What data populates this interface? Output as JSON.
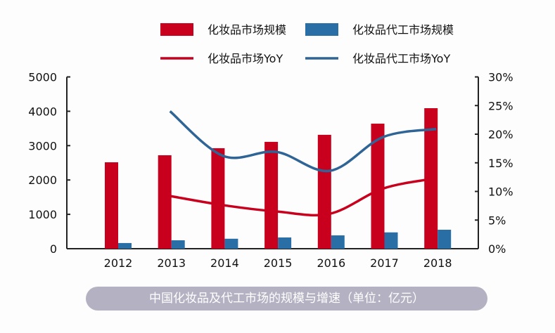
{
  "chart_data": {
    "type": "bar+line",
    "categories": [
      "2012",
      "2013",
      "2014",
      "2015",
      "2016",
      "2017",
      "2018"
    ],
    "series": [
      {
        "name": "化妆品市场规模",
        "kind": "bar",
        "axis": "left",
        "color": "#c8001e",
        "values": [
          2515,
          2720,
          2925,
          3110,
          3315,
          3640,
          4090
        ]
      },
      {
        "name": "化妆品代工市场规模",
        "kind": "bar",
        "axis": "left",
        "color": "#2a6ea6",
        "values": [
          165,
          245,
          290,
          327,
          388,
          475,
          552
        ]
      },
      {
        "name": "化妆品市场YoY",
        "kind": "line",
        "axis": "right",
        "color": "#c8001e",
        "values": [
          null,
          9.2,
          7.6,
          6.5,
          6.1,
          10.5,
          12.3
        ]
      },
      {
        "name": "化妆品代工市场YoY",
        "kind": "line",
        "axis": "right",
        "color": "#2f6496",
        "values": [
          null,
          24.0,
          16.2,
          16.9,
          13.6,
          19.5,
          20.9
        ]
      }
    ],
    "left_axis": {
      "ylim": [
        0,
        5000
      ],
      "ticks": [
        "0",
        "1000",
        "2000",
        "3000",
        "4000",
        "5000"
      ]
    },
    "right_axis": {
      "ylim": [
        0,
        30
      ],
      "ticks": [
        "0%",
        "5%",
        "10%",
        "15%",
        "20%",
        "25%",
        "30%"
      ]
    },
    "legend_placement": "top",
    "grid": false,
    "caption": "中国化妆品及代工市场的规模与增速（单位：亿元）"
  }
}
